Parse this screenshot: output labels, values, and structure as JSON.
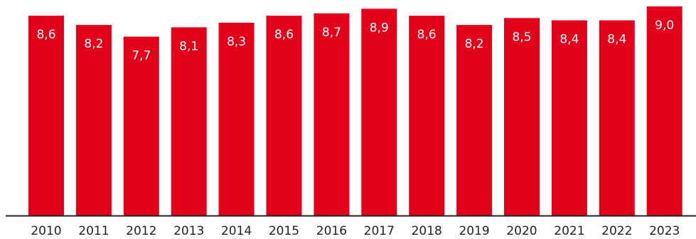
{
  "chart_data": {
    "type": "bar",
    "categories": [
      "2010",
      "2011",
      "2012",
      "2013",
      "2014",
      "2015",
      "2016",
      "2017",
      "2018",
      "2019",
      "2020",
      "2021",
      "2022",
      "2023"
    ],
    "values": [
      8.6,
      8.2,
      7.7,
      8.1,
      8.3,
      8.6,
      8.7,
      8.9,
      8.6,
      8.2,
      8.5,
      8.4,
      8.4,
      9.0
    ],
    "value_labels": [
      "8,6",
      "8,2",
      "7,7",
      "8,1",
      "8,3",
      "8,6",
      "8,7",
      "8,9",
      "8,6",
      "8,2",
      "8,5",
      "8,4",
      "8,4",
      "9,0"
    ],
    "title": "",
    "xlabel": "",
    "ylabel": "",
    "ylim": [
      0,
      9.0
    ],
    "grid": false,
    "legend": "none",
    "colors": {
      "bar": "#e2001a",
      "axis": "#222222",
      "label": "#ffffff"
    }
  }
}
